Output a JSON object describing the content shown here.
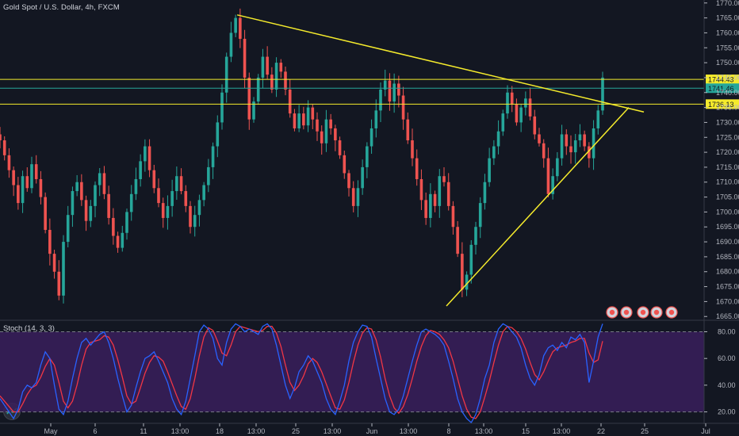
{
  "header": {
    "title": "Gold Spot / U.S. Dollar, 4h, FXCM"
  },
  "indicator": {
    "label": "Stoch (14, 3, 3)"
  },
  "colors": {
    "background": "#131722",
    "up": "#26a69a",
    "down": "#ef5350",
    "trend": "#f5eb2c",
    "k_line": "#2962ff",
    "d_line": "#f23645",
    "stoch_band": "#3a1f5c"
  },
  "chart_data": [
    {
      "type": "candlestick",
      "title": "Gold Spot / U.S. Dollar, 4h, FXCM",
      "ylim": [
        1664,
        1771
      ],
      "y_ticks": [
        1665,
        1670,
        1675,
        1680,
        1685,
        1690,
        1695,
        1700,
        1705,
        1710,
        1715,
        1720,
        1725,
        1730,
        1735,
        1740,
        1745,
        1750,
        1755,
        1760,
        1765,
        1770
      ],
      "x_ticks": [
        "May",
        "6",
        "11",
        "13:00",
        "18",
        "13:00",
        "25",
        "13:00",
        "Jun",
        "13:00",
        "8",
        "13:00",
        "15",
        "13:00",
        "22",
        "25",
        "Jul"
      ],
      "price_labels": [
        {
          "text": "1744.43",
          "value": 1744.43
        },
        {
          "text": "1741.46",
          "value": 1741.46
        },
        {
          "text": "1736.13",
          "value": 1736.13
        }
      ],
      "series": [
        {
          "values": [
            1724,
            1719,
            1714,
            1709,
            1703,
            1712,
            1708,
            1716,
            1711,
            1705,
            1694,
            1686,
            1680,
            1672,
            1690,
            1699,
            1707,
            1710,
            1704,
            1697,
            1702,
            1709,
            1713,
            1706,
            1698,
            1692,
            1688,
            1693,
            1700,
            1706,
            1711,
            1717,
            1722,
            1714,
            1708,
            1703,
            1698,
            1702,
            1707,
            1712,
            1707,
            1702,
            1695,
            1699,
            1704,
            1709,
            1715,
            1722,
            1730,
            1740,
            1752,
            1760,
            1765,
            1758,
            1745,
            1731,
            1737,
            1745,
            1752,
            1746,
            1741,
            1750,
            1747,
            1741,
            1733,
            1728,
            1733,
            1729,
            1735,
            1731,
            1727,
            1723,
            1731,
            1728,
            1724,
            1719,
            1713,
            1708,
            1702,
            1708,
            1715,
            1722,
            1728,
            1734,
            1741,
            1744,
            1737,
            1743,
            1739,
            1731,
            1724,
            1718,
            1711,
            1704,
            1698,
            1706,
            1702,
            1712,
            1710,
            1702,
            1695,
            1686,
            1674,
            1679,
            1689,
            1695,
            1703,
            1710,
            1718,
            1722,
            1727,
            1733,
            1740,
            1736,
            1730,
            1735,
            1738,
            1732,
            1726,
            1723,
            1718,
            1706,
            1712,
            1718,
            1726,
            1722,
            1720,
            1724,
            1726,
            1722,
            1718,
            1728,
            1734,
            1745
          ]
        }
      ]
    },
    {
      "type": "line",
      "title": "Stoch (14, 3, 3)",
      "ylim": [
        15,
        88
      ],
      "y_ticks": [
        20,
        40,
        60,
        80
      ],
      "levels": [
        20,
        80
      ],
      "series": [
        {
          "values": [
            30,
            25,
            20,
            15,
            22,
            35,
            40,
            38,
            42,
            55,
            65,
            60,
            40,
            22,
            18,
            28,
            45,
            60,
            72,
            75,
            70,
            74,
            78,
            80,
            72,
            60,
            45,
            32,
            20,
            25,
            38,
            50,
            60,
            62,
            65,
            58,
            50,
            42,
            30,
            22,
            18,
            28,
            45,
            62,
            80,
            85,
            82,
            75,
            60,
            55,
            72,
            82,
            86,
            84,
            80,
            82,
            80,
            78,
            84,
            86,
            82,
            70,
            55,
            40,
            30,
            38,
            50,
            55,
            62,
            58,
            50,
            42,
            30,
            22,
            18,
            28,
            40,
            58,
            72,
            80,
            85,
            84,
            76,
            60,
            45,
            30,
            20,
            18,
            22,
            32,
            45,
            58,
            70,
            80,
            82,
            80,
            78,
            75,
            70,
            58,
            45,
            30,
            20,
            15,
            12,
            18,
            30,
            45,
            55,
            72,
            82,
            86,
            84,
            80,
            76,
            68,
            55,
            45,
            40,
            48,
            62,
            68,
            70,
            66,
            72,
            68,
            76,
            74,
            78,
            72,
            42,
            58,
            76,
            86
          ]
        },
        {
          "values": [
            32,
            28,
            24,
            20,
            20,
            26,
            33,
            38,
            40,
            46,
            54,
            60,
            55,
            42,
            28,
            23,
            28,
            40,
            55,
            67,
            72,
            73,
            74,
            77,
            76,
            70,
            59,
            46,
            32,
            26,
            28,
            38,
            49,
            57,
            62,
            61,
            58,
            50,
            41,
            32,
            24,
            22,
            30,
            45,
            62,
            76,
            83,
            81,
            73,
            64,
            62,
            70,
            80,
            84,
            83,
            82,
            81,
            80,
            81,
            84,
            84,
            79,
            69,
            55,
            42,
            36,
            40,
            47,
            56,
            60,
            57,
            50,
            41,
            32,
            23,
            22,
            29,
            42,
            57,
            70,
            79,
            83,
            82,
            74,
            61,
            45,
            32,
            23,
            19,
            24,
            33,
            45,
            58,
            69,
            77,
            81,
            80,
            78,
            74,
            68,
            58,
            45,
            32,
            22,
            16,
            15,
            20,
            31,
            43,
            57,
            70,
            80,
            84,
            83,
            80,
            75,
            67,
            57,
            48,
            44,
            50,
            58,
            65,
            68,
            69,
            70,
            72,
            73,
            75,
            75,
            64,
            57,
            59,
            73
          ]
        }
      ]
    }
  ]
}
